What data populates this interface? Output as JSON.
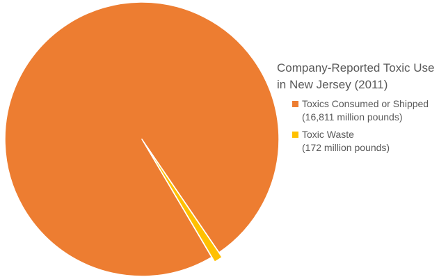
{
  "chart_data": {
    "type": "pie",
    "title": "",
    "legend_title": "Company-Reported Toxic Use in New Jersey (2011)",
    "legend_placement": "right",
    "slices": [
      {
        "label": "Toxics Consumed or Shipped\n(16,811 million pounds)",
        "value": 16811,
        "color": "#ED7D31"
      },
      {
        "label": "Toxic Waste\n(172 million pounds)",
        "value": 172,
        "color": "#FFC000"
      }
    ],
    "units": "million pounds"
  }
}
